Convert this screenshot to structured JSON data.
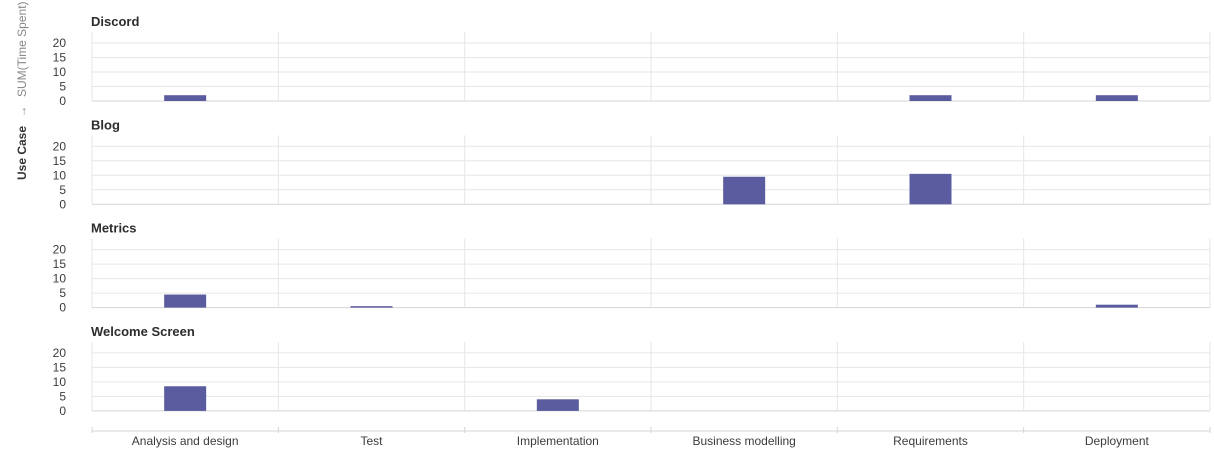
{
  "chart_data": {
    "type": "bar",
    "ylabel_field": "Use Case",
    "ylabel_arrow": "→",
    "ylabel_measure": "SUM(Time Spent)",
    "categories": [
      "Analysis and design",
      "Test",
      "Implementation",
      "Business modelling",
      "Requirements",
      "Deployment"
    ],
    "yticks": [
      0,
      5,
      10,
      15,
      20
    ],
    "ylim": [
      0,
      20
    ],
    "grid": true,
    "bar_color": "#5b5b9f",
    "panels": [
      {
        "title": "Discord",
        "values": [
          2,
          0,
          0,
          0,
          2,
          2
        ]
      },
      {
        "title": "Blog",
        "values": [
          0,
          0,
          0,
          9.5,
          10.5,
          0
        ]
      },
      {
        "title": "Metrics",
        "values": [
          4.5,
          0.5,
          0,
          0,
          0,
          1
        ]
      },
      {
        "title": "Welcome Screen",
        "values": [
          8.5,
          0,
          4,
          0,
          0,
          0
        ]
      }
    ]
  }
}
